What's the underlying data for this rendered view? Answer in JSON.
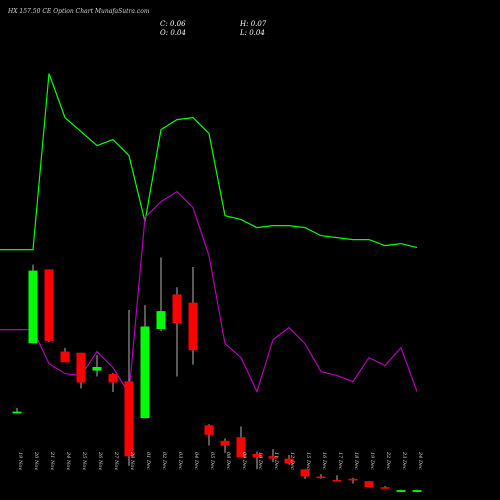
{
  "header": {
    "title": "HX 157.50 CE Option Chart MunafaSutra.com",
    "c": "C: 0.06",
    "h": "H: 0.07",
    "o": "O: 0.04",
    "l": "L: 0.04"
  },
  "chart_data": {
    "type": "candlestick",
    "title": "HX 157.50 CE Option Chart MunafaSutra.com",
    "categories": [
      "19 Nov",
      "20 Nov",
      "21 Nov",
      "24 Nov",
      "25 Nov",
      "26 Nov",
      "27 Nov",
      "28 Nov",
      "01 Dec",
      "02 Dec",
      "03 Dec",
      "04 Dec",
      "05 Dec",
      "08 Dec",
      "09 Dec",
      "10 Dec",
      "11 Dec",
      "12 Dec",
      "15 Dec",
      "16 Dec",
      "17 Dec",
      "18 Dec",
      "19 Dec",
      "22 Dec",
      "23 Dec",
      "24 Dec"
    ],
    "candles": [
      {
        "o": 0.9,
        "c": 1.05,
        "h": 1.35,
        "l": 0.9
      },
      {
        "o": 6.8,
        "c": 12.9,
        "h": 13.4,
        "l": 6.8
      },
      {
        "o": 13.0,
        "c": 7.0,
        "h": 13.0,
        "l": 6.9
      },
      {
        "o": 6.1,
        "c": 5.2,
        "h": 6.4,
        "l": 5.2
      },
      {
        "o": 6.0,
        "c": 3.5,
        "h": 6.0,
        "l": 3.0
      },
      {
        "o": 4.5,
        "c": 4.8,
        "h": 5.8,
        "l": 4.0
      },
      {
        "o": 4.2,
        "c": 3.5,
        "h": 4.3,
        "l": 2.7
      },
      {
        "o": 3.6,
        "c": -2.7,
        "h": 9.6,
        "l": -3.5
      },
      {
        "o": 0.5,
        "c": 8.2,
        "h": 10.0,
        "l": 0.5
      },
      {
        "o": 8.0,
        "c": 9.5,
        "h": 14.0,
        "l": 7.8
      },
      {
        "o": 10.9,
        "c": 8.5,
        "h": 11.5,
        "l": 4.0
      },
      {
        "o": 10.2,
        "c": 6.2,
        "h": 13.2,
        "l": 5.0
      },
      {
        "o": -0.1,
        "c": -0.9,
        "h": 0.0,
        "l": -1.8
      },
      {
        "o": -1.4,
        "c": -1.8,
        "h": -1.2,
        "l": -2.4
      },
      {
        "o": -1.1,
        "c": -2.8,
        "h": -0.2,
        "l": -2.8
      },
      {
        "o": -2.5,
        "c": -2.8,
        "h": -2.3,
        "l": -3.8
      },
      {
        "o": -2.7,
        "c": -2.9,
        "h": -2.1,
        "l": -3.2
      },
      {
        "o": -2.9,
        "c": -3.3,
        "h": -2.6,
        "l": -3.4
      },
      {
        "o": -3.8,
        "c": -4.4,
        "h": -3.8,
        "l": -4.6
      },
      {
        "o": -4.4,
        "c": -4.5,
        "h": -4.2,
        "l": -4.6
      },
      {
        "o": -4.7,
        "c": -4.75,
        "h": -4.3,
        "l": -4.8
      },
      {
        "o": -4.6,
        "c": -4.7,
        "h": -4.5,
        "l": -5.0
      },
      {
        "o": -4.8,
        "c": -5.3,
        "h": -4.8,
        "l": -5.3
      },
      {
        "o": -5.3,
        "c": -5.4,
        "h": -5.2,
        "l": -5.4
      },
      {
        "o": -5.7,
        "c": -5.55,
        "h": -5.5,
        "l": -5.7
      },
      {
        "o": -5.7,
        "c": -5.55,
        "h": -5.5,
        "l": -5.7
      }
    ],
    "series": [
      {
        "values": [
          0.1,
          0.1,
          0.98,
          0.76,
          0.69,
          0.62,
          0.65,
          0.57,
          0.24,
          0.7,
          0.75,
          0.76,
          0.68,
          0.27,
          0.25,
          0.21,
          0.22,
          0.22,
          0.21,
          0.17,
          0.16,
          0.15,
          0.15,
          0.12,
          0.13,
          0.11
        ],
        "color": "#00ff00"
      },
      {
        "values": [
          -0.3,
          -0.3,
          -0.47,
          -0.52,
          -0.53,
          -0.41,
          -0.49,
          -0.62,
          0.26,
          0.34,
          0.39,
          0.31,
          0.07,
          -0.37,
          -0.44,
          -0.61,
          -0.35,
          -0.29,
          -0.37,
          -0.51,
          -0.53,
          -0.56,
          -0.44,
          -0.48,
          -0.39,
          -0.61
        ],
        "color": "#b400b4"
      }
    ],
    "colors": {
      "up": "#00ff00",
      "down": "#ff0000",
      "wick": "#ffffff",
      "background": "#000000"
    }
  }
}
